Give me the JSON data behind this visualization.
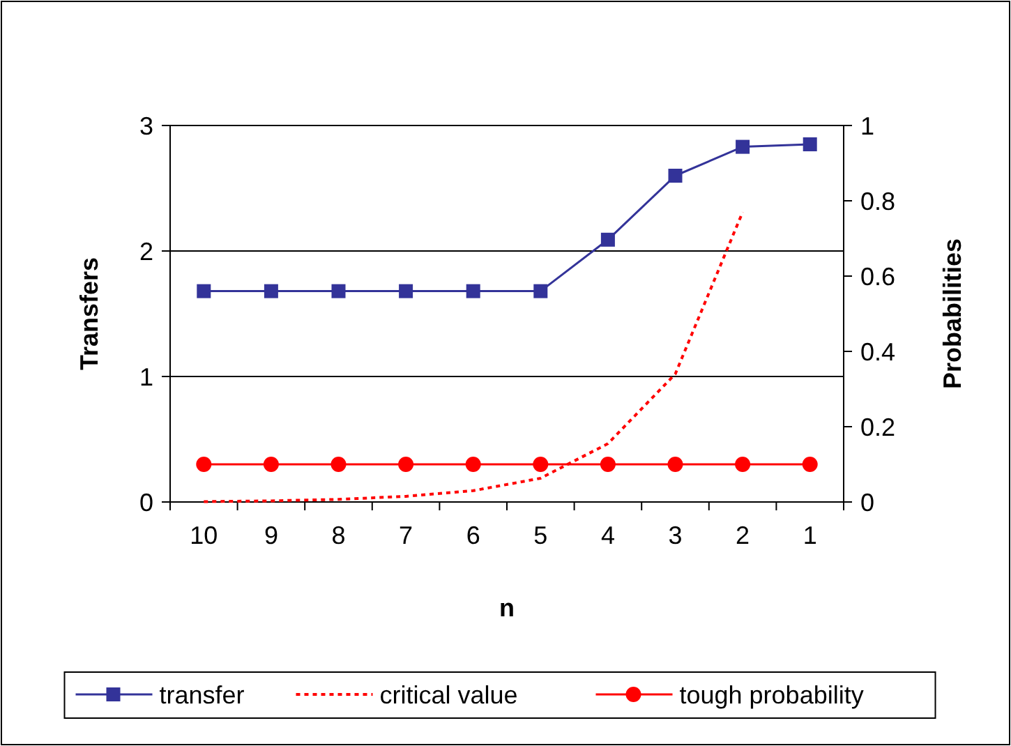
{
  "chart_data": {
    "type": "line",
    "xlabel": "n",
    "ylabel": "Transfers",
    "y2label": "Probabilities",
    "categories": [
      "10",
      "9",
      "8",
      "7",
      "6",
      "5",
      "4",
      "3",
      "2",
      "1"
    ],
    "series": [
      {
        "name": "transfer",
        "color": "#333399",
        "values": [
          1.68,
          1.68,
          1.68,
          1.68,
          1.68,
          1.68,
          2.09,
          2.6,
          2.83,
          2.85
        ],
        "marker": "square",
        "line_style": "solid"
      },
      {
        "name": "critical value",
        "color": "#ff0000",
        "axis": "y2",
        "values": [
          0.001,
          0.003,
          0.007,
          0.015,
          0.03,
          0.063,
          0.155,
          0.34,
          0.77,
          null
        ],
        "marker": "none",
        "line_style": "dotted"
      },
      {
        "name": "tough probability",
        "color": "#ff0000",
        "axis": "y2",
        "values": [
          0.1,
          0.1,
          0.1,
          0.1,
          0.1,
          0.1,
          0.1,
          0.1,
          0.1,
          0.1
        ],
        "marker": "circle",
        "line_style": "solid"
      }
    ],
    "ylim": [
      0,
      3
    ],
    "yticks": [
      0,
      1,
      2,
      3
    ],
    "y2lim": [
      0,
      1
    ],
    "y2ticks": [
      0,
      0.2,
      0.4,
      0.6,
      0.8,
      1
    ],
    "grid": "y",
    "legend": "bottom"
  }
}
